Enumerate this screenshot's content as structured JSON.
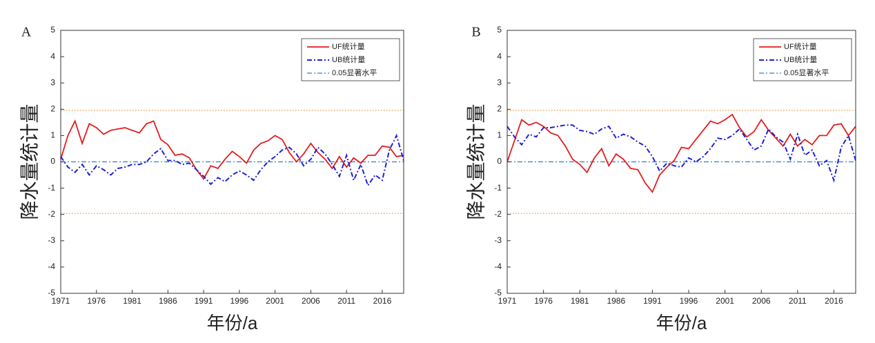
{
  "chart_data": [
    {
      "type": "line",
      "panel_label": "A",
      "ylabel": "降水量统计量",
      "xlabel": "年份/a",
      "x": [
        1971,
        1972,
        1973,
        1974,
        1975,
        1976,
        1977,
        1978,
        1979,
        1980,
        1981,
        1982,
        1983,
        1984,
        1985,
        1986,
        1987,
        1988,
        1989,
        1990,
        1991,
        1992,
        1993,
        1994,
        1995,
        1996,
        1997,
        1998,
        1999,
        2000,
        2001,
        2002,
        2003,
        2004,
        2005,
        2006,
        2007,
        2008,
        2009,
        2010,
        2011,
        2012,
        2013,
        2014,
        2015,
        2016,
        2017,
        2018,
        2019
      ],
      "series": [
        {
          "name": "UF统计量",
          "color": "#e41a1c",
          "style": "solid",
          "values": [
            0.1,
            1.0,
            1.55,
            0.7,
            1.45,
            1.3,
            1.05,
            1.2,
            1.25,
            1.3,
            1.2,
            1.1,
            1.45,
            1.55,
            0.85,
            0.65,
            0.25,
            0.3,
            0.15,
            -0.3,
            -0.65,
            -0.15,
            -0.25,
            0.1,
            0.4,
            0.2,
            -0.05,
            0.45,
            0.7,
            0.8,
            1.0,
            0.85,
            0.35,
            0.0,
            0.3,
            0.7,
            0.35,
            0.1,
            -0.25,
            0.2,
            -0.2,
            0.15,
            -0.05,
            0.25,
            0.25,
            0.6,
            0.55,
            0.2,
            0.25
          ]
        },
        {
          "name": "UB统计量",
          "color": "#1f1fd6",
          "style": "dashdot",
          "values": [
            0.2,
            -0.2,
            -0.4,
            -0.1,
            -0.5,
            -0.15,
            -0.3,
            -0.5,
            -0.25,
            -0.2,
            -0.1,
            -0.1,
            0.0,
            0.3,
            0.5,
            0.05,
            0.05,
            -0.1,
            -0.05,
            -0.3,
            -0.55,
            -0.85,
            -0.6,
            -0.75,
            -0.5,
            -0.35,
            -0.5,
            -0.7,
            -0.3,
            0.0,
            0.2,
            0.45,
            0.55,
            0.3,
            -0.15,
            0.1,
            0.55,
            0.3,
            -0.1,
            -0.55,
            0.25,
            -0.7,
            -0.1,
            -0.9,
            -0.5,
            -0.7,
            0.45,
            1.0,
            0.05
          ]
        }
      ],
      "reference_line": {
        "name": "0.05显著水平",
        "value": 0,
        "color": "#2a7fc9"
      },
      "threshold_lines": {
        "values": [
          1.96,
          -1.96
        ],
        "color": "#e8892a"
      },
      "xlim": [
        1971,
        2019
      ],
      "ylim": [
        -5,
        5
      ],
      "xticks": [
        1971,
        1976,
        1981,
        1986,
        1991,
        1996,
        2001,
        2006,
        2011,
        2016
      ],
      "yticks": [
        -5,
        -4,
        -3,
        -2,
        -1,
        0,
        1,
        2,
        3,
        4,
        5
      ],
      "legend": "upper right"
    },
    {
      "type": "line",
      "panel_label": "B",
      "ylabel": "降水量统计量",
      "xlabel": "年份/a",
      "x": [
        1971,
        1972,
        1973,
        1974,
        1975,
        1976,
        1977,
        1978,
        1979,
        1980,
        1981,
        1982,
        1983,
        1984,
        1985,
        1986,
        1987,
        1988,
        1989,
        1990,
        1991,
        1992,
        1993,
        1994,
        1995,
        1996,
        1997,
        1998,
        1999,
        2000,
        2001,
        2002,
        2003,
        2004,
        2005,
        2006,
        2007,
        2008,
        2009,
        2010,
        2011,
        2012,
        2013,
        2014,
        2015,
        2016,
        2017,
        2018,
        2019
      ],
      "series": [
        {
          "name": "UF统计量",
          "color": "#e41a1c",
          "style": "solid",
          "values": [
            0.0,
            0.8,
            1.6,
            1.4,
            1.5,
            1.35,
            1.1,
            1.0,
            0.6,
            0.1,
            -0.1,
            -0.4,
            0.15,
            0.5,
            -0.15,
            0.3,
            0.1,
            -0.25,
            -0.3,
            -0.8,
            -1.15,
            -0.5,
            -0.2,
            0.05,
            0.55,
            0.5,
            0.85,
            1.2,
            1.55,
            1.45,
            1.6,
            1.8,
            1.3,
            0.95,
            1.15,
            1.6,
            1.2,
            0.9,
            0.6,
            1.05,
            0.6,
            0.85,
            0.65,
            1.0,
            1.0,
            1.4,
            1.45,
            1.0,
            1.35
          ]
        },
        {
          "name": "UB统计量",
          "color": "#1f1fd6",
          "style": "dashdot",
          "values": [
            1.35,
            0.95,
            0.65,
            1.05,
            0.95,
            1.3,
            1.3,
            1.35,
            1.4,
            1.4,
            1.2,
            1.15,
            1.05,
            1.25,
            1.35,
            0.9,
            1.05,
            0.95,
            0.75,
            0.6,
            0.2,
            -0.35,
            -0.05,
            -0.15,
            -0.2,
            0.15,
            0.0,
            0.2,
            0.5,
            0.9,
            0.85,
            1.0,
            1.25,
            0.85,
            0.45,
            0.6,
            1.25,
            0.95,
            0.75,
            0.1,
            1.05,
            0.25,
            0.45,
            -0.15,
            0.05,
            -0.7,
            0.55,
            1.0,
            0.05
          ]
        }
      ],
      "reference_line": {
        "name": "0.05显著水平",
        "value": 0,
        "color": "#2a7fc9"
      },
      "threshold_lines": {
        "values": [
          1.96,
          -1.96
        ],
        "color": "#e8892a"
      },
      "xlim": [
        1971,
        2019
      ],
      "ylim": [
        -5,
        5
      ],
      "xticks": [
        1971,
        1976,
        1981,
        1986,
        1991,
        1996,
        2001,
        2006,
        2011,
        2016
      ],
      "yticks": [
        -5,
        -4,
        -3,
        -2,
        -1,
        0,
        1,
        2,
        3,
        4,
        5
      ],
      "legend": "upper right"
    }
  ]
}
